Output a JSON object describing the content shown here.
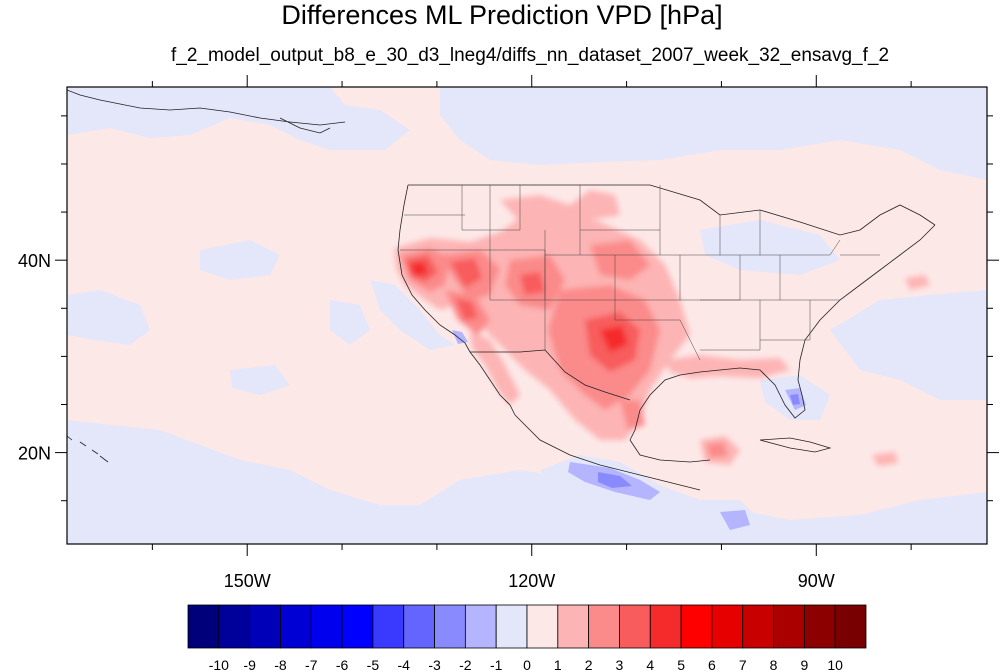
{
  "title": "Differences ML Prediction VPD [hPa]",
  "subtitle": "f_2_model_output_b8_e_30_d3_lneg4/diffs_nn_dataset_2007_week_32_ensavg_f_2",
  "map": {
    "lon_range": [
      -169,
      -72
    ],
    "lat_range": [
      10.5,
      58
    ],
    "background_color": "#fde8e8",
    "lon_ticks": [
      {
        "value": -150,
        "label": "150W"
      },
      {
        "value": -120,
        "label": "120W"
      },
      {
        "value": -90,
        "label": "90W"
      }
    ],
    "lat_ticks": [
      {
        "value": 40,
        "label": "40N"
      },
      {
        "value": 20,
        "label": "20N"
      }
    ],
    "minor_lon_ticks": [
      -160,
      -140,
      -130,
      -110,
      -100,
      -80
    ],
    "minor_lat_ticks": [
      15,
      25,
      30,
      35,
      45,
      50,
      55
    ]
  },
  "colorbar": {
    "labels": [
      "-10",
      "-9",
      "-8",
      "-7",
      "-6",
      "-5",
      "-4",
      "-3",
      "-2",
      "-1",
      "0",
      "1",
      "2",
      "3",
      "4",
      "5",
      "6",
      "7",
      "8",
      "9",
      "10"
    ],
    "colors": [
      "#00007a",
      "#00009a",
      "#0000b8",
      "#0000d4",
      "#0000ee",
      "#0000ff",
      "#3a3aff",
      "#6464ff",
      "#8a8aff",
      "#b4b4ff",
      "#e4e6fa",
      "#fde8e8",
      "#fdb4b4",
      "#fb8a8a",
      "#f85c5c",
      "#f52a2a",
      "#ff0000",
      "#e60000",
      "#c80000",
      "#aa0000",
      "#8c0000",
      "#780000"
    ]
  }
}
